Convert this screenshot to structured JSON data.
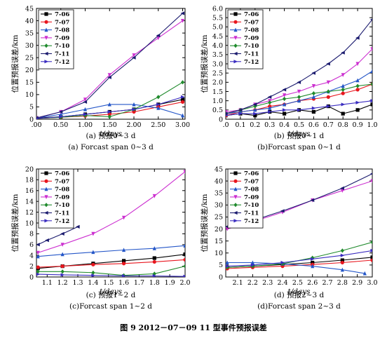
{
  "figure_title": "图 9    2012－07－09 11 型事件预报误差",
  "series_styles": [
    {
      "name": "7-06",
      "color": "#000000",
      "marker": "square"
    },
    {
      "name": "7-07",
      "color": "#e8161e",
      "marker": "circle"
    },
    {
      "name": "7-08",
      "color": "#2456c8",
      "marker": "triangle-up"
    },
    {
      "name": "7-09",
      "color": "#cc2fd0",
      "marker": "triangle-down"
    },
    {
      "name": "7-10",
      "color": "#1f8a2c",
      "marker": "diamond"
    },
    {
      "name": "7-11",
      "color": "#1a1a6e",
      "marker": "triangle-left"
    },
    {
      "name": "7-12",
      "color": "#3a2cc0",
      "marker": "triangle-right"
    }
  ],
  "chart_data": [
    {
      "type": "line",
      "ylabel": "位置预报误差/km",
      "xlabel": "t/days",
      "xlim": [
        0,
        3.05
      ],
      "ylim": [
        0,
        45
      ],
      "xticks": [
        ".00",
        "0.50",
        "1.00",
        "1.50",
        "2.00",
        "2.50",
        "3.00"
      ],
      "xtick_values": [
        0,
        0.5,
        1,
        1.5,
        2,
        2.5,
        3
      ],
      "yticks": [
        "0",
        "5",
        "10",
        "15",
        "20",
        "25",
        "30",
        "35",
        "40",
        "45"
      ],
      "ytick_values": [
        0,
        5,
        10,
        15,
        20,
        25,
        30,
        35,
        40,
        45
      ],
      "caption_cn": "(a) 预报0~3 d",
      "caption_en": "(a) Forcast span 0~3 d",
      "legend_position": "top-left",
      "series": [
        {
          "name": "7-06",
          "x": [
            0,
            0.5,
            1,
            1.5,
            2,
            2.5,
            3
          ],
          "y": [
            0.5,
            1,
            2,
            3,
            4,
            6,
            8
          ]
        },
        {
          "name": "7-07",
          "x": [
            0,
            0.5,
            1,
            1.5,
            2,
            2.5,
            3
          ],
          "y": [
            0.3,
            0.8,
            1.3,
            2,
            3,
            5,
            7
          ]
        },
        {
          "name": "7-08",
          "x": [
            0,
            0.5,
            1,
            1.5,
            2,
            2.5,
            3
          ],
          "y": [
            0.5,
            2,
            4,
            6,
            6,
            4.5,
            1.5
          ]
        },
        {
          "name": "7-09",
          "x": [
            0,
            0.5,
            1,
            1.5,
            2,
            2.5,
            3
          ],
          "y": [
            0.5,
            3,
            8,
            18,
            26,
            33,
            40
          ]
        },
        {
          "name": "7-10",
          "x": [
            0,
            0.5,
            1,
            1.5,
            2,
            2.5,
            3
          ],
          "y": [
            0.3,
            0.8,
            1.5,
            1,
            4,
            9,
            15
          ]
        },
        {
          "name": "7-11",
          "x": [
            0,
            0.5,
            1,
            1.5,
            2,
            2.5,
            3
          ],
          "y": [
            0.5,
            3,
            7,
            17,
            25,
            34,
            43
          ]
        },
        {
          "name": "7-12",
          "x": [
            0,
            0.5,
            1,
            1.5,
            2,
            2.5,
            3
          ],
          "y": [
            0.3,
            1,
            2,
            3,
            4,
            6,
            9
          ]
        }
      ]
    },
    {
      "type": "line",
      "ylabel": "位置预报误差/km",
      "xlabel": "t/days",
      "xlim": [
        0,
        1
      ],
      "ylim": [
        0,
        6
      ],
      "xticks": [
        ".0",
        "0.1",
        "0.2",
        "0.3",
        "0.4",
        "0.5",
        "0.6",
        "0.7",
        "0.8",
        "0.9",
        "1.0"
      ],
      "xtick_values": [
        0,
        0.1,
        0.2,
        0.3,
        0.4,
        0.5,
        0.6,
        0.7,
        0.8,
        0.9,
        1.0
      ],
      "yticks": [
        "0",
        "0.5",
        "1.0",
        "1.5",
        "2.0",
        "2.5",
        "3.0",
        "3.5",
        "4.0",
        "4.5",
        "5.0",
        "5.5",
        "6.0"
      ],
      "ytick_values": [
        0,
        0.5,
        1,
        1.5,
        2,
        2.5,
        3,
        3.5,
        4,
        4.5,
        5,
        5.5,
        6
      ],
      "caption_cn": "(b) 预报0~1 d",
      "caption_en": "(b)Forcast span 0~1 d",
      "legend_position": "top-left",
      "series": [
        {
          "name": "7-06",
          "x": [
            0,
            0.1,
            0.2,
            0.3,
            0.4,
            0.5,
            0.6,
            0.7,
            0.8,
            0.9,
            1.0
          ],
          "y": [
            0.2,
            0.3,
            0.2,
            0.4,
            0.3,
            0.5,
            0.4,
            0.7,
            0.3,
            0.5,
            0.8
          ]
        },
        {
          "name": "7-07",
          "x": [
            0,
            0.1,
            0.2,
            0.3,
            0.4,
            0.5,
            0.6,
            0.7,
            0.8,
            0.9,
            1.0
          ],
          "y": [
            0.2,
            0.4,
            0.5,
            0.7,
            0.8,
            1.0,
            1.1,
            1.2,
            1.4,
            1.6,
            1.9
          ]
        },
        {
          "name": "7-08",
          "x": [
            0,
            0.1,
            0.2,
            0.3,
            0.4,
            0.5,
            0.6,
            0.7,
            0.8,
            0.9,
            1.0
          ],
          "y": [
            0.3,
            0.4,
            0.5,
            0.6,
            0.8,
            1.0,
            1.2,
            1.5,
            1.8,
            2.1,
            2.6
          ]
        },
        {
          "name": "7-09",
          "x": [
            0,
            0.1,
            0.2,
            0.3,
            0.4,
            0.5,
            0.6,
            0.7,
            0.8,
            0.9,
            1.0
          ],
          "y": [
            0.4,
            0.5,
            0.8,
            1.0,
            1.3,
            1.5,
            1.8,
            2.0,
            2.4,
            3.0,
            3.8
          ]
        },
        {
          "name": "7-10",
          "x": [
            0,
            0.1,
            0.2,
            0.3,
            0.4,
            0.5,
            0.6,
            0.7,
            0.8,
            0.9,
            1.0
          ],
          "y": [
            0.3,
            0.5,
            0.7,
            0.9,
            1.1,
            1.2,
            1.4,
            1.5,
            1.6,
            1.8,
            1.9
          ]
        },
        {
          "name": "7-11",
          "x": [
            0,
            0.1,
            0.2,
            0.3,
            0.4,
            0.5,
            0.6,
            0.7,
            0.8,
            0.9,
            1.0
          ],
          "y": [
            0.3,
            0.5,
            0.8,
            1.2,
            1.6,
            2.0,
            2.5,
            3.0,
            3.6,
            4.4,
            5.4
          ]
        },
        {
          "name": "7-12",
          "x": [
            0,
            0.1,
            0.2,
            0.3,
            0.4,
            0.5,
            0.6,
            0.7,
            0.8,
            0.9,
            1.0
          ],
          "y": [
            0.2,
            0.3,
            0.3,
            0.4,
            0.5,
            0.5,
            0.6,
            0.7,
            0.8,
            0.9,
            1.0
          ]
        }
      ]
    },
    {
      "type": "line",
      "ylabel": "位置预报误差/km",
      "xlabel": "t/days",
      "xlim": [
        1.03,
        2.0
      ],
      "ylim": [
        0,
        20
      ],
      "xticks": [
        "1.1",
        "1.2",
        "1.3",
        "1.4",
        "1.5",
        "1.6",
        "1.7",
        "1.8",
        "1.9",
        "2.0"
      ],
      "xtick_values": [
        1.1,
        1.2,
        1.3,
        1.4,
        1.5,
        1.6,
        1.7,
        1.8,
        1.9,
        2.0
      ],
      "yticks": [
        "0",
        "2",
        "4",
        "6",
        "8",
        "10",
        "12",
        "14",
        "16",
        "18",
        "20"
      ],
      "ytick_values": [
        0,
        2,
        4,
        6,
        8,
        10,
        12,
        14,
        16,
        18,
        20
      ],
      "caption_cn": "(c) 预报1~2 d",
      "caption_en": "(c)Forcast span 1~2 d",
      "legend_position": "top-left",
      "series": [
        {
          "name": "7-06",
          "x": [
            1.04,
            1.2,
            1.4,
            1.6,
            1.8,
            2.0
          ],
          "y": [
            1.6,
            2.0,
            2.5,
            3.0,
            3.5,
            4.2
          ]
        },
        {
          "name": "7-07",
          "x": [
            1.04,
            1.2,
            1.4,
            1.6,
            1.8,
            2.0
          ],
          "y": [
            1.8,
            2.0,
            2.3,
            2.5,
            2.8,
            3.2
          ]
        },
        {
          "name": "7-08",
          "x": [
            1.04,
            1.2,
            1.4,
            1.6,
            1.8,
            2.0
          ],
          "y": [
            3.8,
            4.2,
            4.6,
            5.0,
            5.3,
            5.8
          ]
        },
        {
          "name": "7-09",
          "x": [
            1.04,
            1.2,
            1.4,
            1.6,
            1.8,
            2.0
          ],
          "y": [
            4.5,
            6.0,
            8.0,
            11.0,
            15.0,
            19.5
          ]
        },
        {
          "name": "7-10",
          "x": [
            1.04,
            1.2,
            1.4,
            1.6,
            1.8,
            2.0
          ],
          "y": [
            1.0,
            1.0,
            0.8,
            0.3,
            0.6,
            2.0
          ]
        },
        {
          "name": "7-11",
          "x": [
            1.04,
            1.1,
            1.2,
            1.3
          ],
          "y": [
            6.0,
            6.8,
            8.0,
            9.3
          ]
        },
        {
          "name": "7-12",
          "x": [
            1.04,
            1.2,
            1.4,
            1.6,
            1.8,
            2.0
          ],
          "y": [
            0.5,
            0.4,
            0.3,
            0.2,
            0.2,
            0.1
          ]
        }
      ]
    },
    {
      "type": "line",
      "ylabel": "位置预报误差/km",
      "xlabel": "t/days",
      "xlim": [
        2.02,
        3.0
      ],
      "ylim": [
        0,
        45
      ],
      "xticks": [
        "2.1",
        "2.2",
        "2.3",
        "2.4",
        "2.5",
        "2.6",
        "2.7",
        "2.8",
        "2.9",
        "3.0"
      ],
      "xtick_values": [
        2.1,
        2.2,
        2.3,
        2.4,
        2.5,
        2.6,
        2.7,
        2.8,
        2.9,
        3.0
      ],
      "yticks": [
        "0",
        "5",
        "10",
        "15",
        "20",
        "25",
        "30",
        "35",
        "40",
        "45"
      ],
      "ytick_values": [
        0,
        5,
        10,
        15,
        20,
        25,
        30,
        35,
        40,
        45
      ],
      "caption_cn": "(d) 预报2~3 d",
      "caption_en": "(d)Forcast span 2~3 d",
      "legend_position": "top-left",
      "series": [
        {
          "name": "7-06",
          "x": [
            2.03,
            2.2,
            2.4,
            2.6,
            2.8,
            3.0
          ],
          "y": [
            4.0,
            4.5,
            5.2,
            6.0,
            7.0,
            8.2
          ]
        },
        {
          "name": "7-07",
          "x": [
            2.03,
            2.2,
            2.4,
            2.6,
            2.8,
            3.0
          ],
          "y": [
            3.5,
            4.0,
            4.5,
            5.2,
            6.0,
            7.0
          ]
        },
        {
          "name": "7-08",
          "x": [
            2.03,
            2.2,
            2.4,
            2.6,
            2.8,
            2.95
          ],
          "y": [
            6.0,
            6.0,
            5.5,
            4.5,
            3.0,
            1.5
          ]
        },
        {
          "name": "7-09",
          "x": [
            2.03,
            2.2,
            2.4,
            2.6,
            2.8,
            3.0
          ],
          "y": [
            20.0,
            23.0,
            27.0,
            32.0,
            36.0,
            40.0
          ]
        },
        {
          "name": "7-10",
          "x": [
            2.03,
            2.2,
            2.4,
            2.6,
            2.8,
            3.0
          ],
          "y": [
            4.0,
            4.5,
            5.5,
            8.0,
            11.0,
            14.5
          ]
        },
        {
          "name": "7-11",
          "x": [
            2.03,
            2.2,
            2.4,
            2.6,
            2.8,
            3.0
          ],
          "y": [
            21.0,
            23.5,
            27.5,
            32.0,
            37.0,
            43.0
          ]
        },
        {
          "name": "7-12",
          "x": [
            2.03,
            2.2,
            2.4,
            2.6,
            2.8,
            3.0
          ],
          "y": [
            4.5,
            5.0,
            6.0,
            7.5,
            9.0,
            11.0
          ]
        }
      ]
    }
  ]
}
